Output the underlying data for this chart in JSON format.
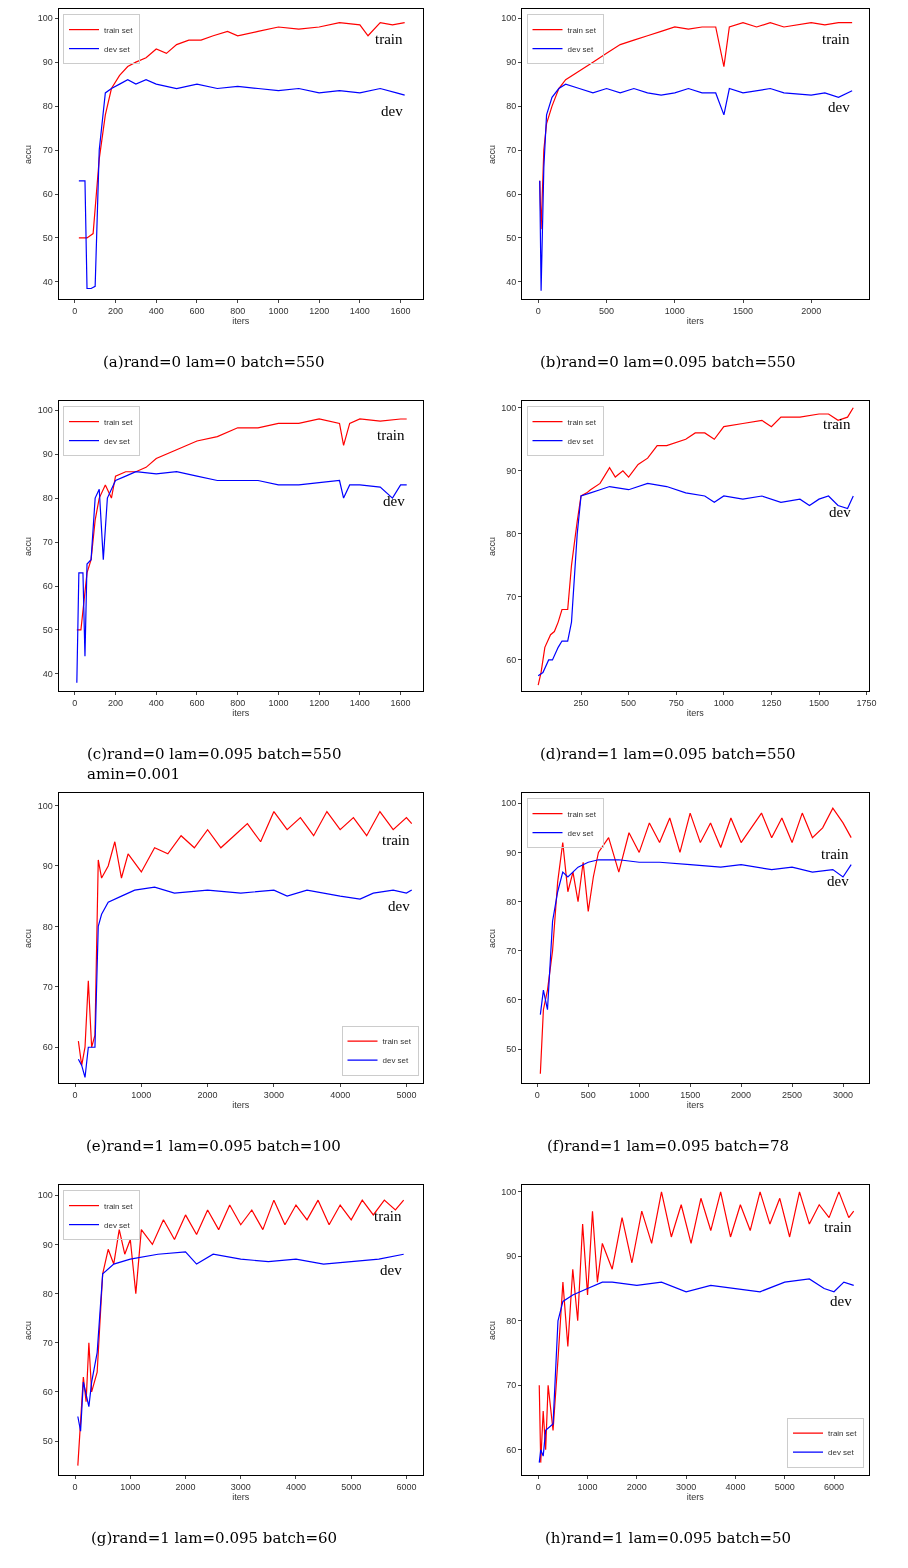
{
  "chart_data": [
    {
      "type": "line",
      "title": "(a)rand=0 lam=0 batch=550",
      "xlabel": "iters",
      "ylabel": "accu",
      "xlim": [
        -80,
        1710
      ],
      "xticks": [
        0,
        200,
        400,
        600,
        800,
        1000,
        1200,
        1400,
        1600
      ],
      "ylim": [
        36,
        102
      ],
      "yticks": [
        40,
        50,
        60,
        70,
        80,
        90,
        100
      ],
      "legend": "top left",
      "series": [
        {
          "name": "train set",
          "color": "#ff0000",
          "x": [
            20,
            60,
            90,
            120,
            150,
            180,
            220,
            260,
            300,
            350,
            400,
            450,
            500,
            560,
            620,
            680,
            750,
            800,
            900,
            1000,
            1100,
            1200,
            1300,
            1400,
            1440,
            1500,
            1560,
            1620
          ],
          "values": [
            50,
            50,
            51,
            68,
            78,
            84,
            87,
            89,
            90,
            91,
            93,
            92,
            94,
            95,
            95,
            96,
            97,
            96,
            97,
            98,
            97.5,
            98,
            99,
            98.5,
            96,
            99,
            98.5,
            99
          ]
        },
        {
          "name": "dev set",
          "color": "#0000ff",
          "x": [
            20,
            50,
            60,
            80,
            100,
            120,
            150,
            180,
            220,
            260,
            300,
            350,
            400,
            500,
            600,
            700,
            800,
            900,
            1000,
            1100,
            1200,
            1300,
            1400,
            1500,
            1580,
            1620
          ],
          "values": [
            63,
            63,
            38.5,
            38.5,
            39,
            70,
            83,
            84,
            85,
            86,
            85,
            86,
            85,
            84,
            85,
            84,
            84.5,
            84,
            83.5,
            84,
            83,
            83.5,
            83,
            84,
            83,
            82.5
          ]
        }
      ],
      "annotations": [
        "train",
        "dev"
      ]
    },
    {
      "type": "line",
      "title": "(b)rand=0 lam=0.095 batch=550",
      "xlabel": "iters",
      "ylabel": "accu",
      "xlim": [
        -120,
        2420
      ],
      "xticks": [
        0,
        500,
        1000,
        1500,
        2000
      ],
      "ylim": [
        36,
        102
      ],
      "yticks": [
        40,
        50,
        60,
        70,
        80,
        90,
        100
      ],
      "legend": "top left",
      "series": [
        {
          "name": "train set",
          "color": "#ff0000",
          "x": [
            10,
            20,
            40,
            60,
            100,
            150,
            200,
            300,
            400,
            500,
            600,
            700,
            800,
            900,
            1000,
            1100,
            1200,
            1300,
            1360,
            1400,
            1500,
            1600,
            1700,
            1800,
            2000,
            2100,
            2200,
            2300
          ],
          "values": [
            63,
            52,
            70,
            76,
            80,
            84,
            86,
            88,
            90,
            92,
            94,
            95,
            96,
            97,
            98,
            97.5,
            98,
            98,
            89,
            98,
            99,
            98,
            99,
            98,
            99,
            98.5,
            99,
            99
          ]
        },
        {
          "name": "dev set",
          "color": "#0000ff",
          "x": [
            10,
            20,
            40,
            60,
            100,
            150,
            200,
            300,
            400,
            500,
            600,
            700,
            800,
            900,
            1000,
            1100,
            1200,
            1300,
            1360,
            1400,
            1500,
            1700,
            1800,
            2000,
            2100,
            2200,
            2300
          ],
          "values": [
            63,
            38,
            66,
            78,
            82,
            84,
            85,
            84,
            83,
            84,
            83,
            84,
            83,
            82.5,
            83,
            84,
            83,
            83,
            78,
            84,
            83,
            84,
            83,
            82.5,
            83,
            82,
            83.5
          ]
        }
      ],
      "annotations": [
        "train",
        "dev"
      ]
    },
    {
      "type": "line",
      "title": "(c)rand=0 lam=0.095 batch=550\namin=0.001",
      "xlabel": "iters",
      "ylabel": "accu",
      "xlim": [
        -80,
        1710
      ],
      "xticks": [
        0,
        200,
        400,
        600,
        800,
        1000,
        1200,
        1400,
        1600
      ],
      "ylim": [
        36,
        102
      ],
      "yticks": [
        40,
        50,
        60,
        70,
        80,
        90,
        100
      ],
      "legend": "top left",
      "series": [
        {
          "name": "train set",
          "color": "#ff0000",
          "x": [
            10,
            30,
            60,
            80,
            100,
            120,
            150,
            180,
            200,
            250,
            300,
            350,
            400,
            500,
            600,
            700,
            800,
            900,
            1000,
            1100,
            1200,
            1300,
            1320,
            1350,
            1400,
            1500,
            1600,
            1630
          ],
          "values": [
            50,
            50,
            63,
            66,
            75,
            80,
            83,
            80,
            85,
            86,
            86,
            87,
            89,
            91,
            93,
            94,
            96,
            96,
            97,
            97,
            98,
            97,
            92,
            97,
            98,
            97.5,
            98,
            98
          ]
        },
        {
          "name": "dev set",
          "color": "#0000ff",
          "x": [
            10,
            20,
            40,
            50,
            60,
            80,
            100,
            120,
            140,
            160,
            200,
            250,
            300,
            400,
            500,
            600,
            700,
            800,
            900,
            1000,
            1100,
            1200,
            1300,
            1320,
            1350,
            1400,
            1500,
            1560,
            1600,
            1630
          ],
          "values": [
            38,
            63,
            63,
            44,
            65,
            66,
            80,
            82,
            66,
            80,
            84,
            85,
            86,
            85.5,
            86,
            85,
            84,
            84,
            84,
            83,
            83,
            83.5,
            84,
            80,
            83,
            83,
            82.5,
            80,
            83,
            83
          ]
        }
      ],
      "annotations": [
        "train",
        "dev"
      ]
    },
    {
      "type": "line",
      "title": "(d)rand=1 lam=0.095 batch=550",
      "xlabel": "iters",
      "ylabel": "accu",
      "xlim": [
        -60,
        1760
      ],
      "xticks": [
        250,
        500,
        750,
        1000,
        1250,
        1500,
        1750
      ],
      "ylim": [
        55,
        101
      ],
      "yticks": [
        60,
        70,
        80,
        90,
        100
      ],
      "legend": "top left",
      "series": [
        {
          "name": "train set",
          "color": "#ff0000",
          "x": [
            25,
            40,
            60,
            90,
            110,
            130,
            150,
            180,
            200,
            230,
            250,
            280,
            300,
            350,
            400,
            430,
            470,
            500,
            550,
            600,
            650,
            700,
            800,
            850,
            900,
            950,
            1000,
            1100,
            1200,
            1250,
            1300,
            1400,
            1500,
            1550,
            1600,
            1650,
            1680
          ],
          "values": [
            56,
            58,
            62,
            64,
            64.5,
            66,
            68,
            68,
            75,
            82,
            86,
            86.5,
            87,
            88,
            90.5,
            89,
            90,
            89,
            91,
            92,
            94,
            94,
            95,
            96,
            96,
            95,
            97,
            97.5,
            98,
            97,
            98.5,
            98.5,
            99,
            99,
            98,
            98.5,
            100
          ]
        },
        {
          "name": "dev set",
          "color": "#0000ff",
          "x": [
            25,
            50,
            80,
            100,
            130,
            150,
            180,
            200,
            230,
            250,
            300,
            350,
            400,
            500,
            600,
            700,
            800,
            900,
            950,
            1000,
            1100,
            1200,
            1300,
            1400,
            1450,
            1500,
            1550,
            1600,
            1650,
            1680
          ],
          "values": [
            57.5,
            58,
            60,
            60,
            62,
            63,
            63,
            66,
            80,
            86,
            86.5,
            87,
            87.5,
            87,
            88,
            87.5,
            86.5,
            86,
            85,
            86,
            85.5,
            86,
            85,
            85.5,
            84.5,
            85.5,
            86,
            84.5,
            84,
            86
          ]
        }
      ],
      "annotations": [
        "train",
        "dev"
      ]
    },
    {
      "type": "line",
      "title": "(e)rand=1 lam=0.095 batch=100",
      "xlabel": "iters",
      "ylabel": "accu",
      "xlim": [
        -250,
        5250
      ],
      "xticks": [
        0,
        1000,
        2000,
        3000,
        4000,
        5000
      ],
      "ylim": [
        54,
        102
      ],
      "yticks": [
        60,
        70,
        80,
        90,
        100
      ],
      "legend": "bottom right",
      "series": [
        {
          "name": "train set",
          "color": "#ff0000",
          "x": [
            50,
            100,
            150,
            200,
            250,
            300,
            350,
            400,
            500,
            600,
            700,
            800,
            1000,
            1200,
            1400,
            1600,
            1800,
            2000,
            2200,
            2400,
            2600,
            2800,
            3000,
            3200,
            3400,
            3600,
            3800,
            4000,
            4200,
            4400,
            4600,
            4800,
            5000,
            5080
          ],
          "values": [
            61,
            57,
            60,
            71,
            60,
            62,
            91,
            88,
            90,
            94,
            88,
            92,
            89,
            93,
            92,
            95,
            93,
            96,
            93,
            95,
            97,
            94,
            99,
            96,
            98,
            95,
            99,
            96,
            98,
            95,
            99,
            96,
            98,
            97
          ]
        },
        {
          "name": "dev set",
          "color": "#0000ff",
          "x": [
            50,
            100,
            150,
            200,
            300,
            350,
            400,
            500,
            700,
            900,
            1200,
            1500,
            2000,
            2500,
            3000,
            3200,
            3500,
            4000,
            4300,
            4500,
            4800,
            5000,
            5080
          ],
          "values": [
            58,
            57,
            55,
            60,
            60,
            80,
            82,
            84,
            85,
            86,
            86.5,
            85.5,
            86,
            85.5,
            86,
            85,
            86,
            85,
            84.5,
            85.5,
            86,
            85.5,
            86
          ]
        }
      ],
      "annotations": [
        "train",
        "dev"
      ]
    },
    {
      "type": "line",
      "title": "(f)rand=1 lam=0.095 batch=78",
      "xlabel": "iters",
      "ylabel": "accu",
      "xlim": [
        -150,
        3250
      ],
      "xticks": [
        0,
        500,
        1000,
        1500,
        2000,
        2500,
        3000
      ],
      "ylim": [
        43,
        102
      ],
      "yticks": [
        50,
        60,
        70,
        80,
        90,
        100
      ],
      "legend": "top left",
      "series": [
        {
          "name": "train set",
          "color": "#ff0000",
          "x": [
            30,
            60,
            100,
            150,
            200,
            250,
            300,
            350,
            400,
            450,
            500,
            550,
            600,
            700,
            800,
            900,
            1000,
            1100,
            1200,
            1300,
            1400,
            1500,
            1600,
            1700,
            1800,
            1900,
            2000,
            2200,
            2300,
            2400,
            2500,
            2600,
            2700,
            2800,
            2900,
            3000,
            3080
          ],
          "values": [
            45,
            58,
            62,
            70,
            84,
            92,
            82,
            86,
            80,
            88,
            78,
            85,
            90,
            93,
            86,
            94,
            90,
            96,
            92,
            97,
            90,
            98,
            92,
            96,
            91,
            97,
            92,
            98,
            93,
            97,
            92,
            98,
            93,
            95,
            99,
            96,
            93
          ]
        },
        {
          "name": "dev set",
          "color": "#0000ff",
          "x": [
            30,
            60,
            100,
            150,
            200,
            250,
            300,
            400,
            500,
            600,
            800,
            1000,
            1200,
            1500,
            1800,
            2000,
            2300,
            2500,
            2700,
            2900,
            3000,
            3080
          ],
          "values": [
            57,
            62,
            58,
            76,
            82,
            86,
            85,
            87,
            88,
            88.5,
            88.5,
            88,
            88,
            87.5,
            87,
            87.5,
            86.5,
            87,
            86,
            86.5,
            85,
            87.5
          ]
        }
      ],
      "annotations": [
        "train",
        "dev"
      ]
    },
    {
      "type": "line",
      "title": "(g)rand=1 lam=0.095 batch=60",
      "xlabel": "iters",
      "ylabel": "accu",
      "xlim": [
        -300,
        6300
      ],
      "xticks": [
        0,
        1000,
        2000,
        3000,
        4000,
        5000,
        6000
      ],
      "ylim": [
        43,
        102
      ],
      "yticks": [
        50,
        60,
        70,
        80,
        90,
        100
      ],
      "legend": "top left",
      "series": [
        {
          "name": "train set",
          "color": "#ff0000",
          "x": [
            50,
            100,
            150,
            200,
            250,
            300,
            400,
            500,
            600,
            700,
            800,
            900,
            1000,
            1100,
            1200,
            1400,
            1600,
            1800,
            2000,
            2200,
            2400,
            2600,
            2800,
            3000,
            3200,
            3400,
            3600,
            3800,
            4000,
            4200,
            4400,
            4600,
            4800,
            5000,
            5200,
            5400,
            5600,
            5800,
            5950
          ],
          "values": [
            45,
            54,
            63,
            58,
            70,
            60,
            64,
            84,
            89,
            86,
            93,
            88,
            91,
            80,
            93,
            90,
            95,
            91,
            96,
            92,
            97,
            93,
            98,
            94,
            97,
            93,
            99,
            94,
            98,
            95,
            99,
            94,
            98,
            95,
            99,
            96,
            99,
            97,
            99
          ]
        },
        {
          "name": "dev set",
          "color": "#0000ff",
          "x": [
            50,
            100,
            150,
            250,
            300,
            400,
            500,
            700,
            1000,
            1500,
            2000,
            2200,
            2500,
            3000,
            3500,
            4000,
            4500,
            5000,
            5500,
            5950
          ],
          "values": [
            55,
            52,
            62,
            57,
            62,
            68,
            84,
            86,
            87,
            88,
            88.5,
            86,
            88,
            87,
            86.5,
            87,
            86,
            86.5,
            87,
            88
          ]
        }
      ],
      "annotations": [
        "train",
        "dev"
      ]
    },
    {
      "type": "line",
      "title": "(h)rand=1 lam=0.095 batch=50",
      "xlabel": "iters",
      "ylabel": "accu",
      "xlim": [
        -330,
        6700
      ],
      "xticks": [
        0,
        1000,
        2000,
        3000,
        4000,
        5000,
        6000
      ],
      "ylim": [
        56,
        101
      ],
      "yticks": [
        60,
        70,
        80,
        90,
        100
      ],
      "legend": "bottom right",
      "series": [
        {
          "name": "train set",
          "color": "#ff0000",
          "x": [
            20,
            50,
            100,
            150,
            200,
            300,
            400,
            500,
            600,
            700,
            800,
            900,
            1000,
            1100,
            1200,
            1300,
            1500,
            1700,
            1900,
            2100,
            2300,
            2500,
            2700,
            2900,
            3100,
            3300,
            3500,
            3700,
            3900,
            4100,
            4300,
            4500,
            4700,
            4900,
            5100,
            5300,
            5500,
            5700,
            5900,
            6100,
            6300,
            6400
          ],
          "values": [
            70,
            58,
            66,
            60,
            70,
            63,
            74,
            86,
            76,
            88,
            80,
            95,
            84,
            97,
            86,
            92,
            88,
            96,
            89,
            97,
            92,
            100,
            93,
            98,
            92,
            99,
            94,
            100,
            93,
            98,
            94,
            100,
            95,
            99,
            93,
            100,
            95,
            98,
            96,
            100,
            96,
            97
          ]
        },
        {
          "name": "dev set",
          "color": "#0000ff",
          "x": [
            20,
            50,
            100,
            150,
            300,
            400,
            500,
            700,
            1000,
            1300,
            1500,
            2000,
            2500,
            3000,
            3500,
            4000,
            4500,
            5000,
            5500,
            5800,
            6000,
            6200,
            6400
          ],
          "values": [
            58,
            60,
            59,
            63,
            64,
            80,
            83,
            84,
            85,
            86,
            86,
            85.5,
            86,
            84.5,
            85.5,
            85,
            84.5,
            86,
            86.5,
            85,
            84.5,
            86,
            85.5
          ]
        }
      ],
      "annotations": [
        "train",
        "dev"
      ]
    }
  ]
}
